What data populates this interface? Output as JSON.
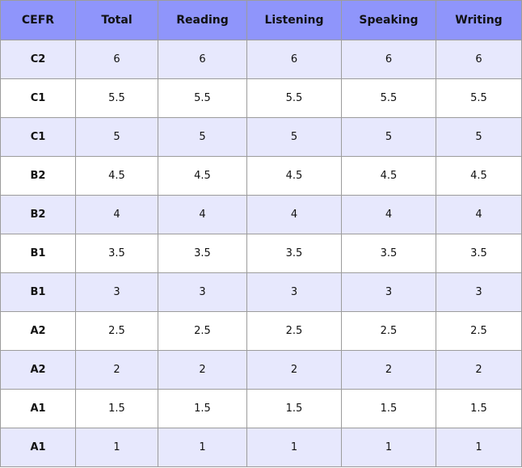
{
  "table": {
    "header": [
      "CEFR",
      "Total",
      "Reading",
      "Listening",
      "Speaking",
      "Writing"
    ],
    "rows": [
      [
        "C2",
        6,
        6,
        6,
        6,
        6
      ],
      [
        "C1",
        5.5,
        5.5,
        5.5,
        5.5,
        5.5
      ],
      [
        "C1",
        5,
        5,
        5,
        5,
        5
      ],
      [
        "B2",
        4.5,
        4.5,
        4.5,
        4.5,
        4.5
      ],
      [
        "B2",
        4,
        4,
        4,
        4,
        4
      ],
      [
        "B1",
        3.5,
        3.5,
        3.5,
        3.5,
        3.5
      ],
      [
        "B1",
        3,
        3,
        3,
        3,
        3
      ],
      [
        "A2",
        2.5,
        2.5,
        2.5,
        2.5,
        2.5
      ],
      [
        "A2",
        2,
        2,
        2,
        2,
        2
      ],
      [
        "A1",
        1.5,
        1.5,
        1.5,
        1.5,
        1.5
      ],
      [
        "A1",
        1,
        1,
        1,
        1,
        1
      ]
    ]
  }
}
